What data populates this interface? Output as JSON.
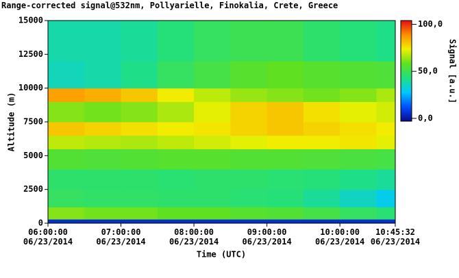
{
  "chart_data": {
    "type": "heatmap",
    "title": "Range-corrected signal@532nm, Pollyarielle, Finokalia, Crete, Greece",
    "x_label": "Time (UTC)",
    "y_label": "Altitude (m)",
    "xlim": [
      6,
      10.7589
    ],
    "xticks": [
      {
        "value": 6,
        "label": "06:00:00\n06/23/2014"
      },
      {
        "value": 7,
        "label": "07:00:00\n06/23/2014"
      },
      {
        "value": 8,
        "label": "08:00:00\n06/23/2014"
      },
      {
        "value": 9,
        "label": "09:00:00\n06/23/2014"
      },
      {
        "value": 10,
        "label": "10:00:00\n06/23/2014"
      },
      {
        "value": 10.7589,
        "label": "10:45:32\n06/23/2014"
      }
    ],
    "ylim": [
      0,
      15000
    ],
    "yticks": [
      0,
      2500,
      5000,
      7500,
      10000,
      12500,
      15000
    ],
    "x_bins": [
      6,
      6.5,
      7,
      7.5,
      8,
      8.5,
      9,
      9.5,
      10,
      10.5,
      10.7589
    ],
    "y_bins": [
      0,
      300,
      1200,
      2500,
      4000,
      5500,
      6500,
      7500,
      9000,
      10000,
      12000,
      15000
    ],
    "values": [
      [
        5,
        5,
        5,
        5,
        5,
        5,
        5,
        5,
        5,
        5
      ],
      [
        62,
        60,
        60,
        58,
        58,
        56,
        55,
        52,
        48,
        45
      ],
      [
        48,
        47,
        47,
        46,
        46,
        45,
        44,
        40,
        35,
        30
      ],
      [
        46,
        46,
        46,
        45,
        46,
        46,
        45,
        44,
        42,
        40
      ],
      [
        55,
        54,
        55,
        56,
        56,
        55,
        55,
        54,
        53,
        52
      ],
      [
        68,
        67,
        66,
        68,
        70,
        72,
        74,
        74,
        75,
        72
      ],
      [
        80,
        78,
        76,
        74,
        75,
        78,
        80,
        78,
        76,
        74
      ],
      [
        62,
        60,
        62,
        66,
        72,
        78,
        80,
        76,
        72,
        70
      ],
      [
        86,
        84,
        80,
        74,
        68,
        64,
        62,
        60,
        62,
        66
      ],
      [
        36,
        38,
        42,
        48,
        52,
        56,
        58,
        56,
        55,
        54
      ],
      [
        38,
        38,
        40,
        44,
        48,
        50,
        50,
        46,
        44,
        42
      ]
    ],
    "colormap": [
      "#0a0a8c",
      "#0050ff",
      "#00c8ff",
      "#20e080",
      "#60e020",
      "#f0f000",
      "#ff9000",
      "#e01010"
    ],
    "colorbar": {
      "label": "Signal [a.u.]",
      "lim": [
        -3,
        104
      ],
      "ticks": [
        {
          "value": 100,
          "label": "100,0"
        },
        {
          "value": 50,
          "label": "50,0"
        },
        {
          "value": 0,
          "label": "0,0"
        }
      ]
    }
  }
}
